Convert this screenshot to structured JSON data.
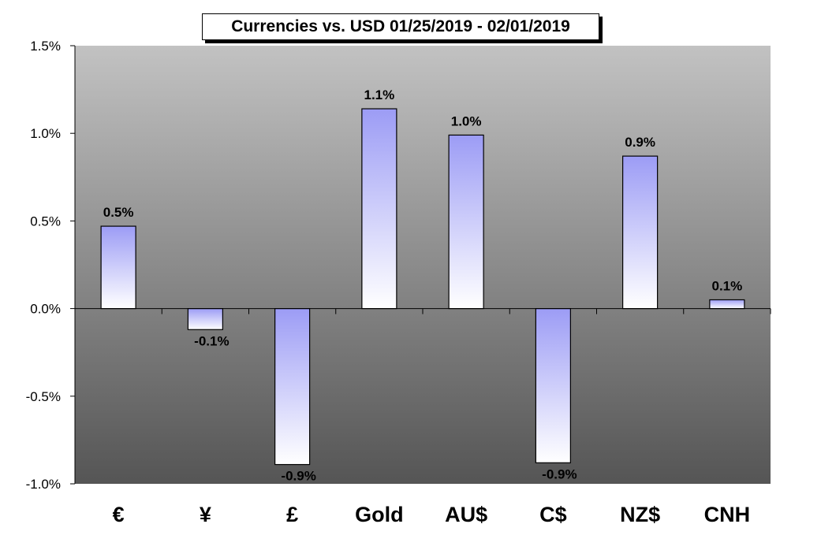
{
  "chart_data": {
    "type": "bar",
    "title": "Currencies vs. USD 01/25/2019 - 02/01/2019",
    "categories": [
      "€",
      "¥",
      "£",
      "Gold",
      "AU$",
      "C$",
      "NZ$",
      "CNH"
    ],
    "values": [
      0.47,
      -0.12,
      -0.89,
      1.14,
      0.99,
      -0.88,
      0.87,
      0.05
    ],
    "data_labels": [
      "0.5%",
      "-0.1%",
      "-0.9%",
      "1.1%",
      "1.0%",
      "-0.9%",
      "0.9%",
      "0.1%"
    ],
    "ylim": [
      -1.0,
      1.5
    ],
    "yticks": [
      1.5,
      1.0,
      0.5,
      0.0,
      -0.5,
      -1.0
    ],
    "ytick_labels": [
      "1.5%",
      "1.0%",
      "0.5%",
      "0.0%",
      "-0.5%",
      "-1.0%"
    ],
    "xlabel": "",
    "ylabel": "",
    "grid": false,
    "legend": "none",
    "colors": {
      "bar_top": "#9c9cf5",
      "bar_bottom": "#ffffff",
      "plot_top": "#c2c2c2",
      "plot_bottom": "#555555"
    }
  }
}
